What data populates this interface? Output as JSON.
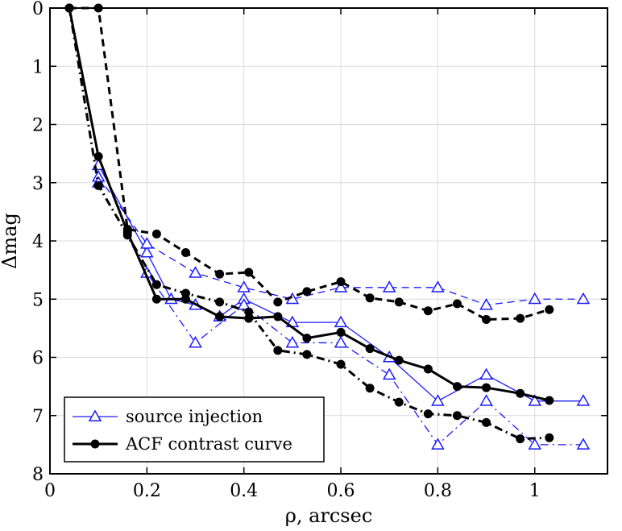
{
  "chart_data": {
    "type": "line",
    "title": "",
    "xlabel": "ρ, arcsec",
    "ylabel": "Δmag",
    "xlim": [
      0,
      1.15
    ],
    "ylim": [
      0,
      8
    ],
    "y_inverted": true,
    "grid": true,
    "legend_position": "bottom-left",
    "x_ticks": [
      "0",
      "0.2",
      "0.4",
      "0.6",
      "0.8",
      "1"
    ],
    "x_tick_values": [
      0,
      0.2,
      0.4,
      0.6,
      0.8,
      1
    ],
    "y_ticks": [
      "0",
      "1",
      "2",
      "3",
      "4",
      "5",
      "6",
      "7",
      "8"
    ],
    "y_tick_values": [
      0,
      1,
      2,
      3,
      4,
      5,
      6,
      7,
      8
    ],
    "legend": [
      {
        "label": "source injection",
        "color": "#1a1aff",
        "marker": "triangle-open",
        "style": "solid"
      },
      {
        "label": "ACF contrast curve",
        "color": "#000000",
        "marker": "dot",
        "style": "solid"
      }
    ],
    "series": [
      {
        "group": "source injection",
        "color": "#1a1aff",
        "marker": "triangle-open",
        "dash": "solid",
        "width": 1.3,
        "x": [
          0.1,
          0.2,
          0.25,
          0.3,
          0.35,
          0.4,
          0.5,
          0.6,
          0.7,
          0.8,
          0.9,
          1.0,
          1.1
        ],
        "y": [
          2.7,
          4.2,
          5.0,
          5.1,
          5.3,
          5.0,
          5.4,
          5.4,
          6.0,
          6.75,
          6.3,
          6.75,
          6.75
        ]
      },
      {
        "group": "source injection",
        "color": "#1a1aff",
        "marker": "triangle-open",
        "dash": "dashed",
        "width": 1.3,
        "x": [
          0.1,
          0.2,
          0.3,
          0.4,
          0.5,
          0.6,
          0.7,
          0.8,
          0.9,
          1.0,
          1.1
        ],
        "y": [
          2.9,
          4.05,
          4.55,
          4.8,
          5.0,
          4.8,
          4.8,
          4.8,
          5.1,
          5.0,
          5.0
        ]
      },
      {
        "group": "source injection",
        "color": "#1a1aff",
        "marker": "triangle-open",
        "dash": "dashdot",
        "width": 1.3,
        "x": [
          0.1,
          0.2,
          0.3,
          0.4,
          0.5,
          0.6,
          0.7,
          0.8,
          0.9,
          1.0,
          1.1
        ],
        "y": [
          3.0,
          4.55,
          5.75,
          5.1,
          5.75,
          5.75,
          6.3,
          7.5,
          6.75,
          7.5,
          7.5
        ]
      },
      {
        "group": "ACF contrast curve",
        "color": "#000000",
        "marker": "dot",
        "dash": "solid",
        "width": 3,
        "x": [
          0.04,
          0.1,
          0.16,
          0.22,
          0.28,
          0.35,
          0.41,
          0.47,
          0.53,
          0.6,
          0.66,
          0.72,
          0.78,
          0.84,
          0.9,
          0.97,
          1.03
        ],
        "y": [
          0,
          2.55,
          3.85,
          5.0,
          5.0,
          5.3,
          5.33,
          5.3,
          5.67,
          5.57,
          5.85,
          6.05,
          6.2,
          6.5,
          6.52,
          6.62,
          6.74
        ]
      },
      {
        "group": "ACF contrast curve",
        "color": "#000000",
        "marker": "dot",
        "dash": "dashed",
        "width": 3,
        "x": [
          0.04,
          0.1,
          0.16,
          0.22,
          0.28,
          0.35,
          0.41,
          0.47,
          0.53,
          0.6,
          0.66,
          0.72,
          0.78,
          0.84,
          0.9,
          0.97,
          1.03
        ],
        "y": [
          0,
          0,
          3.8,
          3.88,
          4.2,
          4.57,
          4.54,
          5.05,
          4.87,
          4.7,
          4.98,
          5.05,
          5.2,
          5.08,
          5.35,
          5.33,
          5.18
        ]
      },
      {
        "group": "ACF contrast curve",
        "color": "#000000",
        "marker": "dot",
        "dash": "dashdot",
        "width": 3,
        "x": [
          0.04,
          0.1,
          0.16,
          0.22,
          0.28,
          0.35,
          0.41,
          0.47,
          0.53,
          0.6,
          0.66,
          0.72,
          0.78,
          0.84,
          0.9,
          0.97,
          1.03
        ],
        "y": [
          0,
          3.05,
          3.9,
          4.75,
          4.9,
          5.05,
          5.22,
          5.88,
          5.95,
          6.12,
          6.53,
          6.77,
          6.97,
          7.0,
          7.12,
          7.4,
          7.38
        ]
      }
    ]
  }
}
